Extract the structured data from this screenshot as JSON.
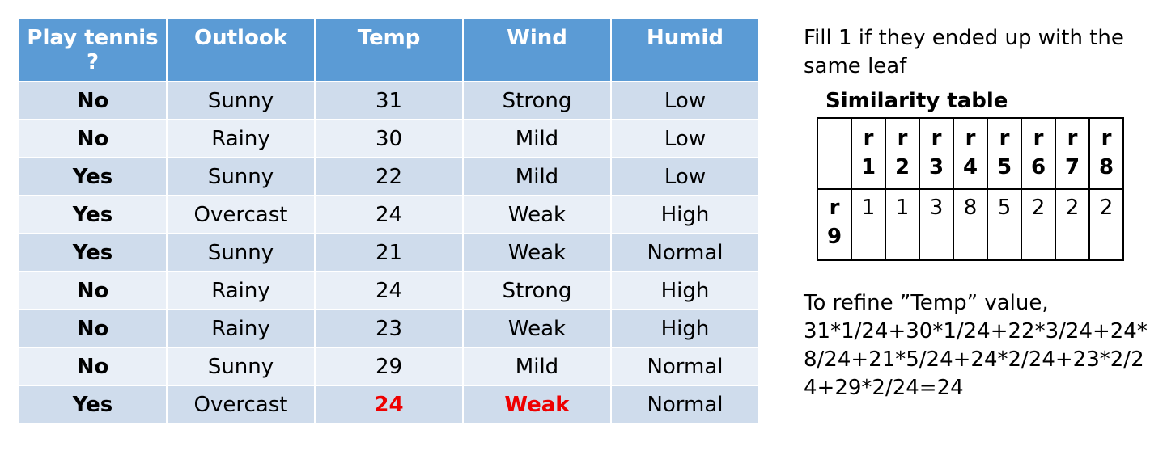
{
  "table": {
    "header": [
      "Play tennis ?",
      "Outlook",
      "Temp",
      "Wind",
      "Humid"
    ],
    "rows": [
      [
        "No",
        "Sunny",
        31,
        "Strong",
        "Low"
      ],
      [
        "No",
        "Rainy",
        30,
        "Mild",
        "Low"
      ],
      [
        "Yes",
        "Sunny",
        22,
        "Mild",
        "Low"
      ],
      [
        "Yes",
        "Overcast",
        24,
        "Weak",
        "High"
      ],
      [
        "Yes",
        "Sunny",
        21,
        "Weak",
        "Normal"
      ],
      [
        "No",
        "Rainy",
        24,
        "Strong",
        "High"
      ],
      [
        "No",
        "Rainy",
        23,
        "Weak",
        "High"
      ],
      [
        "No",
        "Sunny",
        29,
        "Mild",
        "Normal"
      ],
      [
        "Yes",
        "Overcast",
        24,
        "Weak",
        "Normal"
      ]
    ]
  },
  "note": "Fill 1 if they ended up with the same leaf",
  "similarity": {
    "title": "Similarity table",
    "columns": [
      "r1",
      "r2",
      "r3",
      "r4",
      "r5",
      "r6",
      "r7",
      "r8"
    ],
    "row_label": "r9",
    "values": [
      1,
      1,
      3,
      8,
      5,
      2,
      2,
      2
    ]
  },
  "refine": {
    "text": "To refine ”Temp” value,",
    "formula": "31*1/24+30*1/24+22*3/24+24*8/24+21*5/24+24*2/24+23*2/24+29*2/24=24"
  }
}
